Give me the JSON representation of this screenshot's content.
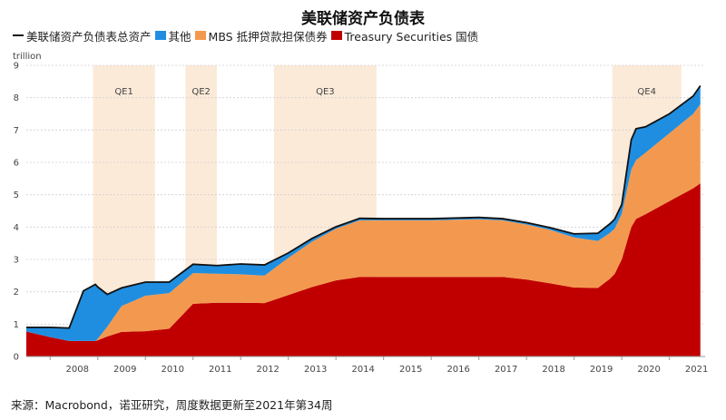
{
  "chart_data": {
    "type": "area",
    "title": "美联储资产负债表",
    "unit_label": "trillion",
    "ylim": [
      0,
      9
    ],
    "y_ticks": [
      "0",
      "1",
      "2",
      "3",
      "4",
      "5",
      "6",
      "7",
      "8",
      "9"
    ],
    "x_range": [
      2007.5,
      2021.75
    ],
    "x_ticks": [
      {
        "label": "2008",
        "x": 2008.0
      },
      {
        "label": "2009",
        "x": 2009.0
      },
      {
        "label": "2010",
        "x": 2010.0
      },
      {
        "label": "2011",
        "x": 2011.0
      },
      {
        "label": "2012",
        "x": 2012.0
      },
      {
        "label": "2013",
        "x": 2013.0
      },
      {
        "label": "2014",
        "x": 2014.0
      },
      {
        "label": "2015",
        "x": 2015.0
      },
      {
        "label": "2016",
        "x": 2016.0
      },
      {
        "label": "2017",
        "x": 2017.0
      },
      {
        "label": "2018",
        "x": 2018.0
      },
      {
        "label": "2019",
        "x": 2019.0
      },
      {
        "label": "2020",
        "x": 2020.0
      },
      {
        "label": "2021",
        "x": 2021.0
      }
    ],
    "legend": [
      {
        "label": "美联储资产负债表总资产",
        "kind": "line",
        "color": "#111111"
      },
      {
        "label": "其他",
        "kind": "area",
        "color": "#1f8ee0"
      },
      {
        "label": "MBS 抵押贷款担保债券",
        "kind": "area",
        "color": "#f3994f"
      },
      {
        "label": "Treasury Securities 国债",
        "kind": "area",
        "color": "#c00000"
      }
    ],
    "shaded_periods": [
      {
        "label": "QE1",
        "start": 2008.9,
        "end": 2010.2
      },
      {
        "label": "QE2",
        "start": 2010.84,
        "end": 2011.5
      },
      {
        "label": "QE3",
        "start": 2012.7,
        "end": 2014.85
      },
      {
        "label": "QE4",
        "start": 2019.8,
        "end": 2021.25
      }
    ],
    "x": [
      2007.5,
      2008.0,
      2008.4,
      2008.7,
      2008.95,
      2009.0,
      2009.2,
      2009.5,
      2010.0,
      2010.5,
      2011.0,
      2011.5,
      2012.0,
      2012.5,
      2013.0,
      2013.5,
      2014.0,
      2014.5,
      2015.0,
      2016.0,
      2017.0,
      2017.5,
      2018.0,
      2018.5,
      2019.0,
      2019.5,
      2019.75,
      2019.85,
      2020.0,
      2020.2,
      2020.3,
      2020.5,
      2021.0,
      2021.5,
      2021.65
    ],
    "series": [
      {
        "name": "Treasury Securities 国债",
        "color": "#c00000",
        "values": [
          0.77,
          0.6,
          0.48,
          0.48,
          0.48,
          0.5,
          0.62,
          0.76,
          0.78,
          0.86,
          1.63,
          1.66,
          1.66,
          1.65,
          1.9,
          2.15,
          2.35,
          2.46,
          2.46,
          2.46,
          2.46,
          2.46,
          2.38,
          2.26,
          2.13,
          2.12,
          2.4,
          2.55,
          3.0,
          4.0,
          4.25,
          4.4,
          4.8,
          5.2,
          5.35
        ]
      },
      {
        "name": "MBS 抵押贷款担保债券",
        "color": "#f3994f",
        "values": [
          0.0,
          0.0,
          0.0,
          0.0,
          0.0,
          0.05,
          0.3,
          0.8,
          1.1,
          1.1,
          0.95,
          0.9,
          0.88,
          0.85,
          1.15,
          1.4,
          1.6,
          1.75,
          1.75,
          1.75,
          1.78,
          1.75,
          1.7,
          1.65,
          1.55,
          1.45,
          1.42,
          1.4,
          1.41,
          1.78,
          1.82,
          1.9,
          2.1,
          2.3,
          2.45
        ]
      },
      {
        "name": "其他",
        "color": "#1f8ee0",
        "values": [
          0.13,
          0.3,
          0.4,
          1.55,
          1.75,
          1.6,
          1.0,
          0.56,
          0.42,
          0.34,
          0.27,
          0.25,
          0.32,
          0.33,
          0.15,
          0.1,
          0.06,
          0.06,
          0.05,
          0.05,
          0.06,
          0.05,
          0.06,
          0.07,
          0.11,
          0.24,
          0.28,
          0.29,
          0.29,
          0.92,
          0.97,
          0.8,
          0.6,
          0.55,
          0.57
        ]
      }
    ],
    "grid": true
  },
  "source_note": "来源：Macrobond，诺亚研究，周度数据更新至2021年第34周"
}
